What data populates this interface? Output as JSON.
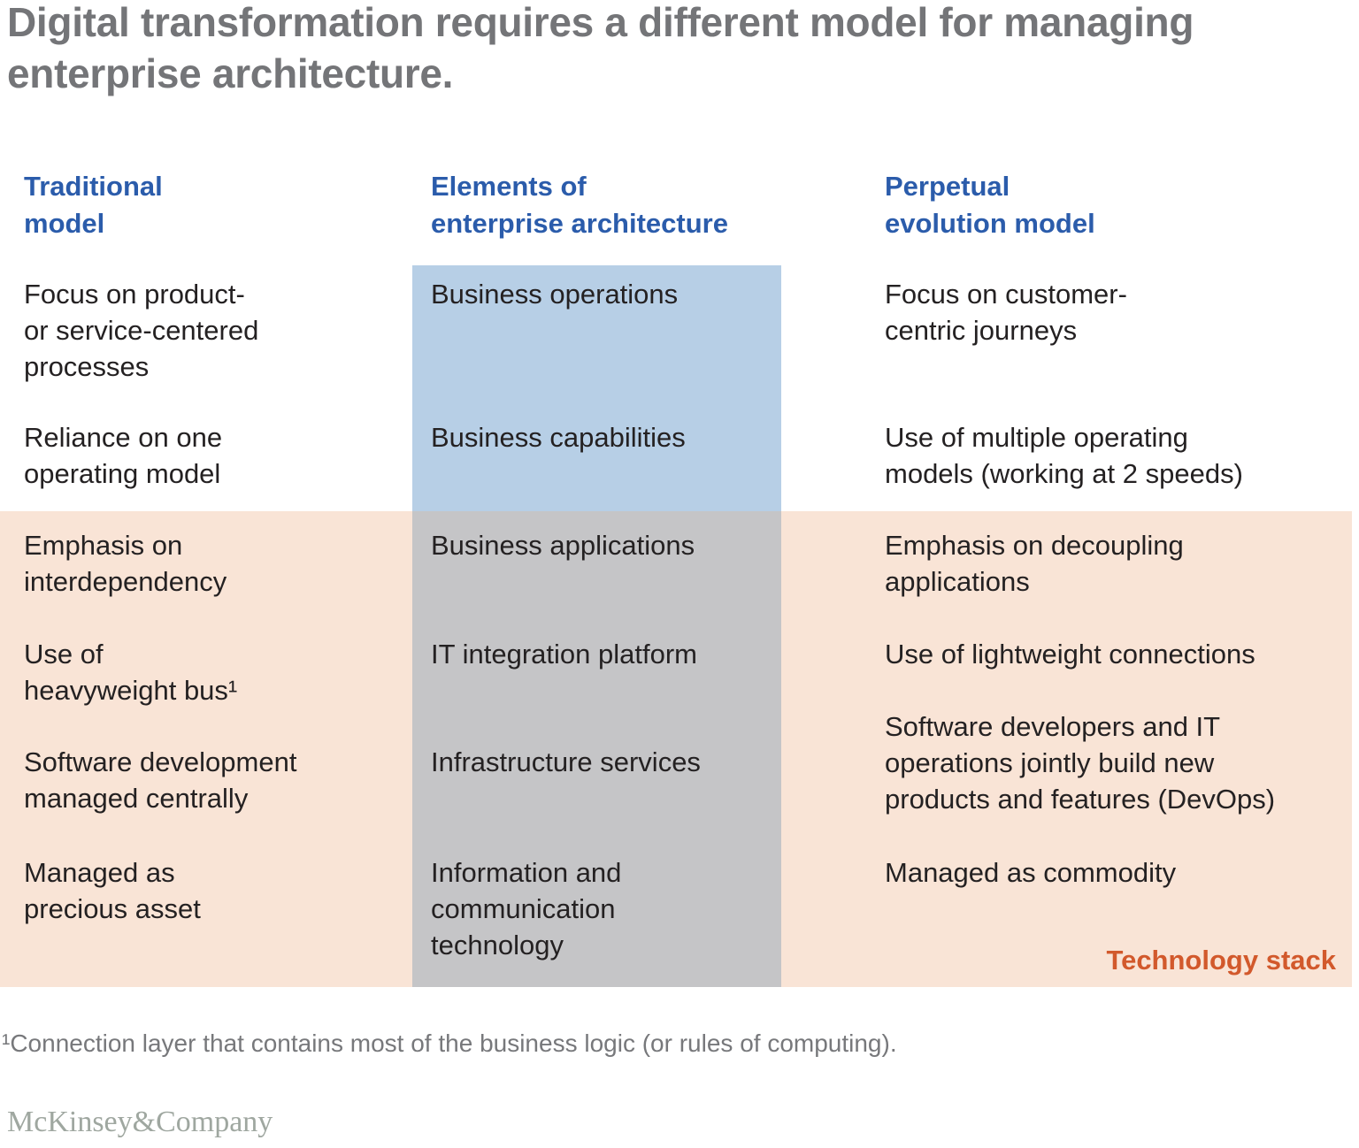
{
  "title": "Digital transformation requires a different model for managing\nenterprise architecture.",
  "table": {
    "columns": [
      {
        "id": "traditional",
        "header": "Traditional\nmodel",
        "rows": [
          "Focus on product-\nor service-centered\nprocesses",
          "Reliance on one\noperating model",
          "Emphasis on\ninterdependency",
          "Use of\nheavyweight bus¹",
          "Software development\nmanaged centrally",
          "Managed as\nprecious asset"
        ]
      },
      {
        "id": "elements",
        "header": "Elements of\nenterprise architecture",
        "rows": [
          "Business operations",
          "Business capabilities",
          "Business applications",
          "IT integration platform",
          "Infrastructure services",
          "Information and\ncommunication\ntechnology"
        ]
      },
      {
        "id": "perpetual",
        "header": "Perpetual\nevolution model",
        "rows": [
          "Focus on customer-\ncentric journeys",
          "Use of multiple operating\nmodels (working at 2 speeds)",
          "Emphasis on decoupling\napplications",
          "Use of lightweight connections",
          "Software developers and IT\noperations jointly build new\nproducts and features (DevOps)",
          "Managed as commodity"
        ]
      }
    ],
    "technology_stack_label": "Technology stack"
  },
  "footnote": "¹Connection layer that contains most of the business logic (or rules of computing).",
  "logo": "McKinsey&Company",
  "colors": {
    "header_blue": "#2b5cab",
    "business_layers_blue": "#b7cfe6",
    "technology_layers_gray": "#c5c5c7",
    "technology_stack_band_peach": "#f9e4d6",
    "technology_stack_label_orange": "#d2592c",
    "title_gray": "#747578",
    "body_text": "#242122",
    "footnote_gray": "#77787b",
    "logo_gray": "#9fa7a0"
  }
}
